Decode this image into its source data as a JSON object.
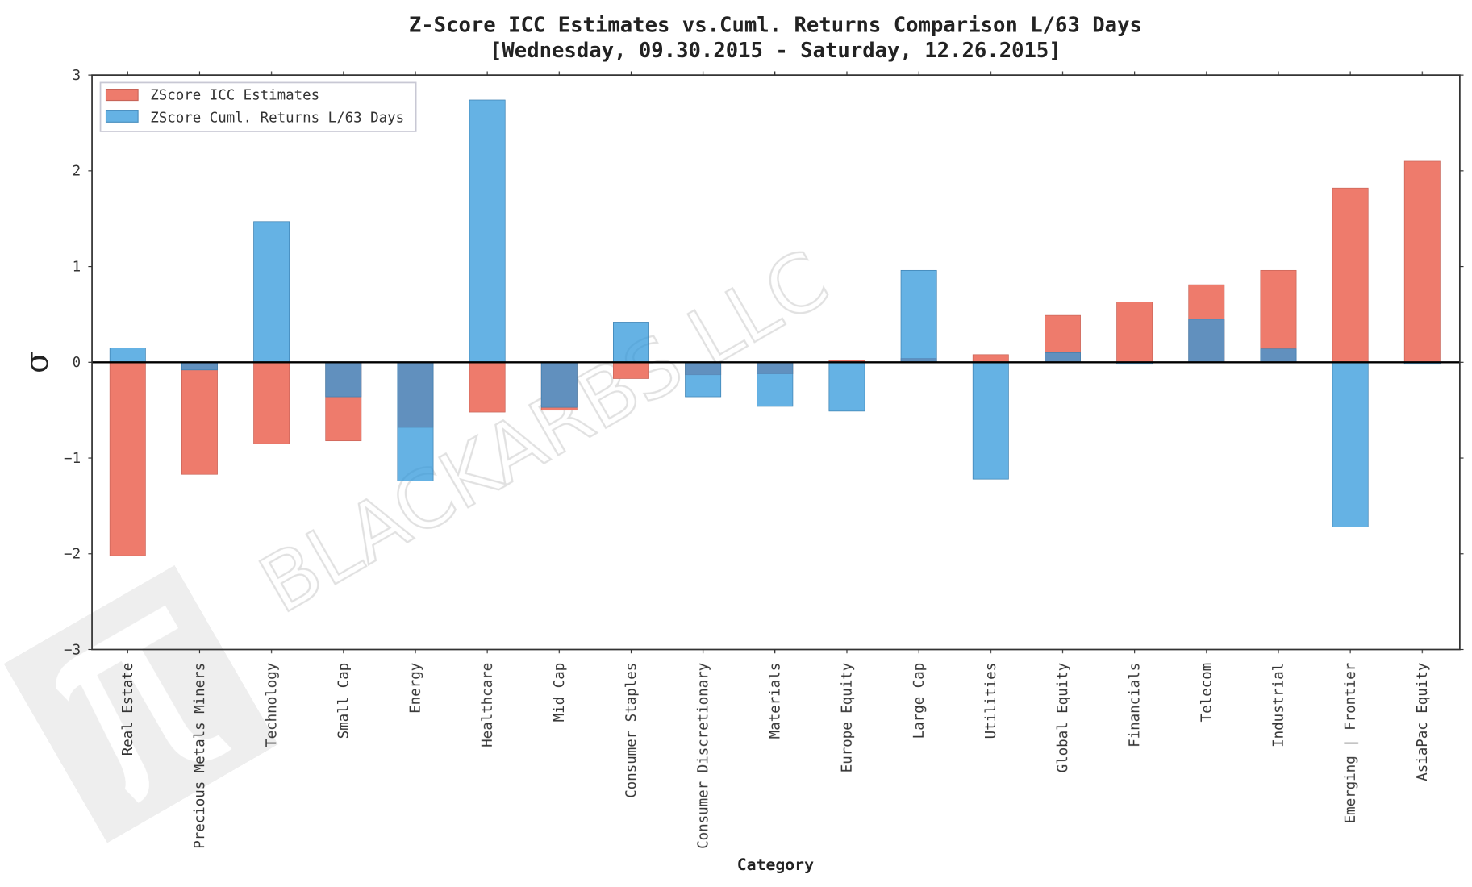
{
  "chart_data": {
    "type": "bar",
    "title": "Z-Score ICC Estimates vs.Cuml. Returns Comparison L/63 Days",
    "subtitle": "[Wednesday, 09.30.2015 - Saturday, 12.26.2015]",
    "xlabel": "Category",
    "ylabel": "σ",
    "ylim": [
      -3,
      3
    ],
    "yticks": [
      "−3",
      "−2",
      "−1",
      "0",
      "1",
      "2",
      "3"
    ],
    "grid": false,
    "legend_placement": "top-left",
    "watermark": "BLACKARBS LLC",
    "categories": [
      "Real Estate",
      "Precious Metals Miners",
      "Technology",
      "Small Cap",
      "Energy",
      "Healthcare",
      "Mid Cap",
      "Consumer Staples",
      "Consumer Discretionary",
      "Materials",
      "Europe Equity",
      "Large Cap",
      "Utilities",
      "Global Equity",
      "Financials",
      "Telecom",
      "Industrial",
      "Emerging | Frontier",
      "AsiaPac Equity"
    ],
    "series": [
      {
        "name": "ZScore ICC Estimates",
        "color": "#ee7b6c",
        "values": [
          -2.02,
          -1.17,
          -0.85,
          -0.82,
          -0.68,
          -0.52,
          -0.5,
          -0.17,
          -0.13,
          -0.12,
          0.02,
          0.04,
          0.08,
          0.49,
          0.63,
          0.81,
          0.96,
          1.82,
          2.1
        ]
      },
      {
        "name": "ZScore Cuml. Returns L/63 Days",
        "color": "#2f97db",
        "values": [
          0.15,
          -0.08,
          1.47,
          -0.36,
          -1.24,
          2.74,
          -0.47,
          0.42,
          -0.36,
          -0.46,
          -0.51,
          0.96,
          -1.22,
          0.1,
          -0.02,
          0.45,
          0.14,
          -1.72,
          -0.02
        ]
      }
    ]
  }
}
